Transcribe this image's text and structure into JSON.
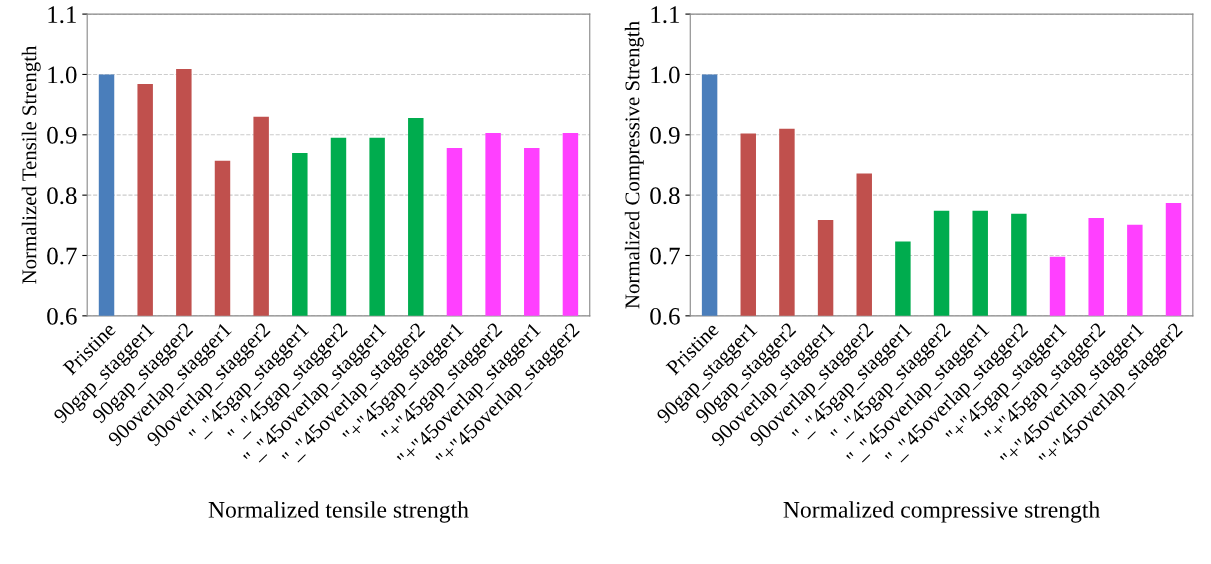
{
  "chart_data": [
    {
      "type": "bar",
      "ylabel": "Normalized Tensile Strength",
      "xlabel": "Normalized tensile strength",
      "categories": [
        "Pristine",
        "90gap_stagger1",
        "90gap_stagger2",
        "90overlap_stagger1",
        "90overlap_stagger2",
        "\"_\"45gap_stagger1",
        "\"_\"45gap_stagger2",
        "\"_\"45overlap_stagger1",
        "\"_\"45overlap_stagger2",
        "\"+\"45gap_stagger1",
        "\"+\"45gap_stagger2",
        "\"+\"45overlap_stagger1",
        "\"+\"45overlap_stagger2"
      ],
      "values": [
        1.0,
        0.984,
        1.009,
        0.857,
        0.93,
        0.87,
        0.895,
        0.895,
        0.928,
        0.878,
        0.903,
        0.878,
        0.903
      ],
      "colors": [
        "#4a7ebb",
        "#c0504d",
        "#c0504d",
        "#c0504d",
        "#c0504d",
        "#00ac4e",
        "#00ac4e",
        "#00ac4e",
        "#00ac4e",
        "#ff40ff",
        "#ff40ff",
        "#ff40ff",
        "#ff40ff"
      ],
      "ylim": [
        0.6,
        1.1
      ],
      "yticks": [
        {
          "value": 0.6,
          "label": "0.6"
        },
        {
          "value": 0.7,
          "label": "0.7"
        },
        {
          "value": 0.8,
          "label": "0.8"
        },
        {
          "value": 0.9,
          "label": "0.9"
        },
        {
          "value": 1.0,
          "label": "1.0"
        },
        {
          "value": 1.1,
          "label": "1.1"
        }
      ],
      "grid": "y",
      "legend": false
    },
    {
      "type": "bar",
      "ylabel": "Normalized Compressive Strength",
      "xlabel": "Normalized compressive strength",
      "categories": [
        "Pristine",
        "90gap_stagger1",
        "90gap_stagger2",
        "90overlap_stagger1",
        "90overlap_stagger2",
        "\"_\"45gap_stagger1",
        "\"_\"45gap_stagger2",
        "\"_\"45overlap_stagger1",
        "\"_\"45overlap_stagger2",
        "\"+\"45gap_stagger1",
        "\"+\"45gap_stagger2",
        "\"+\"45overlap_stagger1",
        "\"+\"45overlap_stagger2"
      ],
      "values": [
        1.0,
        0.902,
        0.91,
        0.759,
        0.836,
        0.723,
        0.774,
        0.774,
        0.769,
        0.698,
        0.762,
        0.751,
        0.787
      ],
      "colors": [
        "#4a7ebb",
        "#c0504d",
        "#c0504d",
        "#c0504d",
        "#c0504d",
        "#00ac4e",
        "#00ac4e",
        "#00ac4e",
        "#00ac4e",
        "#ff40ff",
        "#ff40ff",
        "#ff40ff",
        "#ff40ff"
      ],
      "ylim": [
        0.6,
        1.1
      ],
      "yticks": [
        {
          "value": 0.6,
          "label": "0.6"
        },
        {
          "value": 0.7,
          "label": "0.7"
        },
        {
          "value": 0.8,
          "label": "0.8"
        },
        {
          "value": 0.9,
          "label": "0.9"
        },
        {
          "value": 1.0,
          "label": "1.0"
        },
        {
          "value": 1.1,
          "label": "1.1"
        }
      ],
      "grid": "y",
      "legend": false
    }
  ]
}
